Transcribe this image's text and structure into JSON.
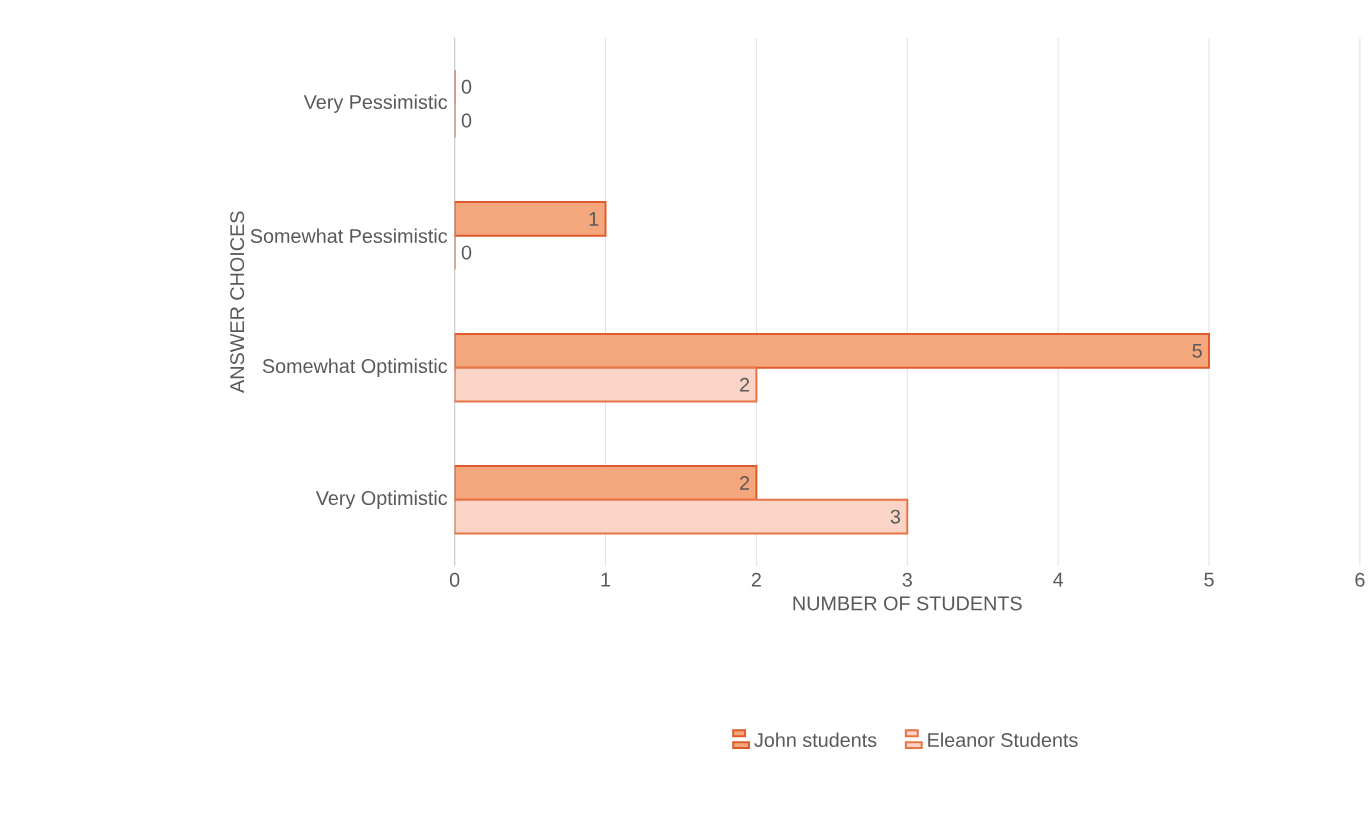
{
  "chart_data": {
    "type": "bar",
    "orientation": "horizontal",
    "xlabel": "NUMBER OF STUDENTS",
    "ylabel": "ANSWER CHOICES",
    "categories": [
      "Very Pessimistic",
      "Somewhat Pessimistic",
      "Somewhat Optimistic",
      "Very Optimistic"
    ],
    "series": [
      {
        "name": "John students",
        "color": "#f4a77c",
        "values": [
          0,
          1,
          5,
          2
        ]
      },
      {
        "name": "Eleanor Students",
        "color": "#fad4c6",
        "values": [
          0,
          0,
          2,
          3
        ]
      }
    ],
    "xlim": [
      0,
      6
    ],
    "xticks": [
      0,
      1,
      2,
      3,
      4,
      5,
      6
    ],
    "grid": "x",
    "legend": "bottom",
    "data_labels": true
  }
}
